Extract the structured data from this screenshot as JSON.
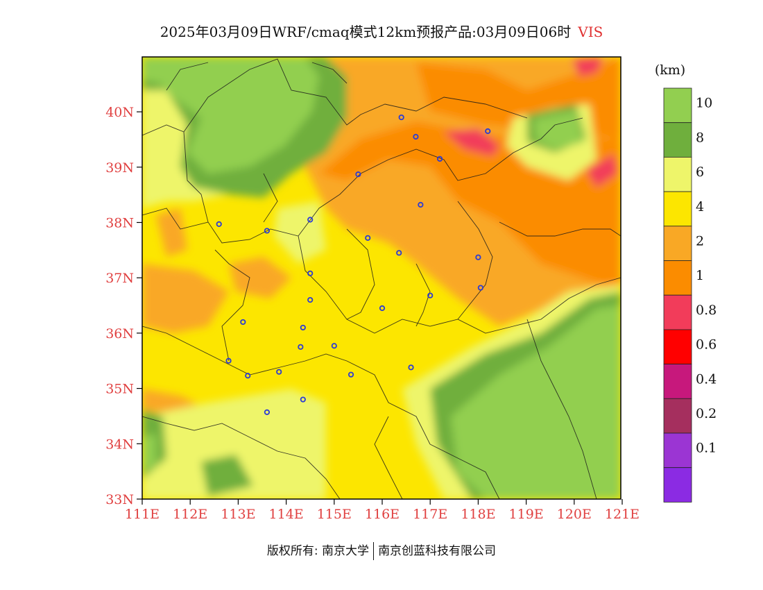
{
  "title": {
    "text": "2025年03月09日WRF/cmaq模式12km预报产品:03月09日06时",
    "variable": "VIS"
  },
  "axes": {
    "lat_labels": [
      "40N",
      "39N",
      "38N",
      "37N",
      "36N",
      "35N",
      "34N",
      "33N"
    ],
    "lon_labels": [
      "111E",
      "112E",
      "113E",
      "114E",
      "115E",
      "116E",
      "117E",
      "118E",
      "119E",
      "120E",
      "121E"
    ]
  },
  "colorbar": {
    "unit": "(km)",
    "levels": [
      "10",
      "8",
      "6",
      "4",
      "2",
      "1",
      "0.8",
      "0.6",
      "0.4",
      "0.2",
      "0.1"
    ],
    "colors": [
      "#92cf50",
      "#6faf3d",
      "#eef56a",
      "#fce600",
      "#f9a825",
      "#fb8c00",
      "#f23c5a",
      "#ff0000",
      "#c7187c",
      "#a52f5e",
      "#9b35d3",
      "#8b2be3"
    ]
  },
  "stations": [
    {
      "lon": 116.4,
      "lat": 39.9
    },
    {
      "lon": 116.7,
      "lat": 39.55
    },
    {
      "lon": 118.2,
      "lat": 39.65
    },
    {
      "lon": 117.2,
      "lat": 39.15
    },
    {
      "lon": 115.5,
      "lat": 38.87
    },
    {
      "lon": 116.8,
      "lat": 38.32
    },
    {
      "lon": 114.5,
      "lat": 38.05
    },
    {
      "lon": 112.6,
      "lat": 37.97
    },
    {
      "lon": 113.6,
      "lat": 37.85
    },
    {
      "lon": 115.7,
      "lat": 37.72
    },
    {
      "lon": 116.35,
      "lat": 37.45
    },
    {
      "lon": 118.0,
      "lat": 37.37
    },
    {
      "lon": 114.5,
      "lat": 37.08
    },
    {
      "lon": 118.05,
      "lat": 36.82
    },
    {
      "lon": 117.0,
      "lat": 36.68
    },
    {
      "lon": 114.5,
      "lat": 36.6
    },
    {
      "lon": 116.0,
      "lat": 36.45
    },
    {
      "lon": 113.1,
      "lat": 36.2
    },
    {
      "lon": 114.35,
      "lat": 36.1
    },
    {
      "lon": 115.0,
      "lat": 35.77
    },
    {
      "lon": 114.3,
      "lat": 35.75
    },
    {
      "lon": 112.8,
      "lat": 35.5
    },
    {
      "lon": 116.6,
      "lat": 35.38
    },
    {
      "lon": 113.85,
      "lat": 35.3
    },
    {
      "lon": 113.2,
      "lat": 35.23
    },
    {
      "lon": 115.35,
      "lat": 35.25
    },
    {
      "lon": 114.35,
      "lat": 34.8
    },
    {
      "lon": 113.6,
      "lat": 34.57
    }
  ],
  "footer": {
    "left": "版权所有: 南京大学",
    "right": "南京创蓝科技有限公司"
  }
}
